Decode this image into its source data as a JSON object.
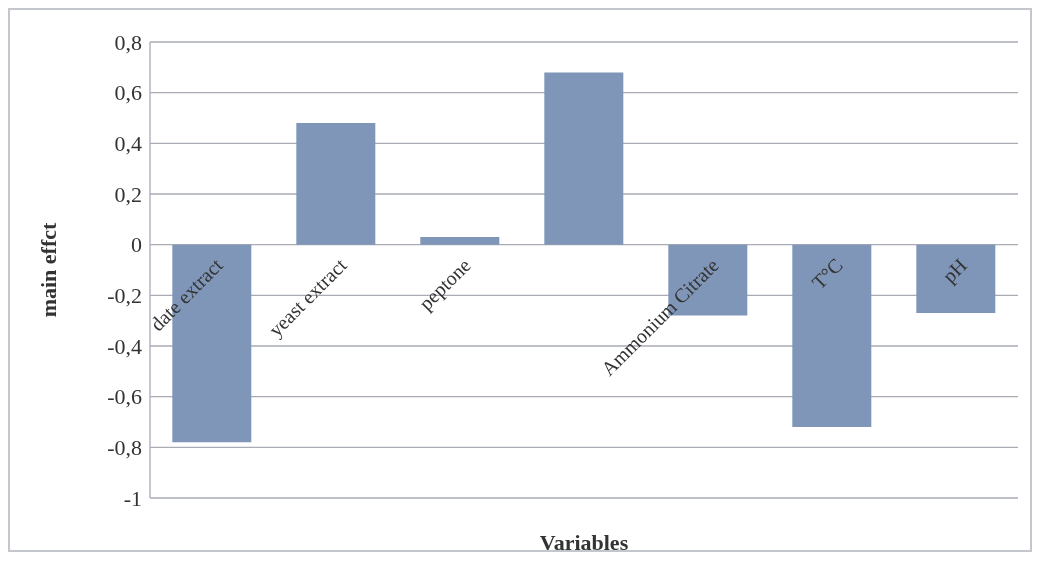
{
  "chart_data": {
    "type": "bar",
    "xlabel": "Variables",
    "ylabel": "main effct",
    "categories": [
      "date extract",
      "yeast extract",
      "peptone",
      null,
      "Ammonium Citrate",
      "T°C",
      "pH"
    ],
    "values": [
      -0.78,
      0.48,
      0.03,
      0.68,
      -0.28,
      -0.72,
      -0.27
    ],
    "color": "#7f96b8",
    "ylim": [
      -1,
      0.8
    ],
    "yticks": [
      {
        "value": -1,
        "label": "-1"
      },
      {
        "value": -0.8,
        "label": "-0,8"
      },
      {
        "value": -0.6,
        "label": "-0,6"
      },
      {
        "value": -0.4,
        "label": "-0,4"
      },
      {
        "value": -0.2,
        "label": "-0,2"
      },
      {
        "value": 0,
        "label": "0"
      },
      {
        "value": 0.2,
        "label": "0,2"
      },
      {
        "value": 0.4,
        "label": "0,4"
      },
      {
        "value": 0.6,
        "label": "0,6"
      },
      {
        "value": 0.8,
        "label": "0,8"
      }
    ],
    "grid": "y",
    "legend": false
  }
}
